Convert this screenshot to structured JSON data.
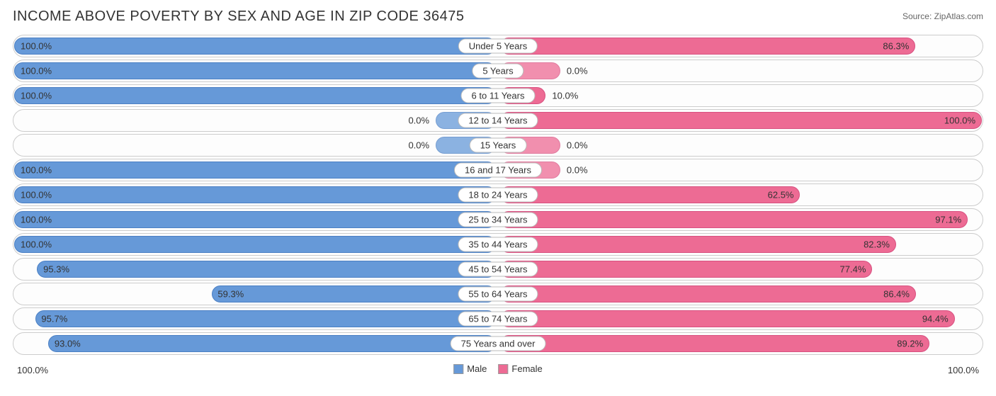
{
  "title": "INCOME ABOVE POVERTY BY SEX AND AGE IN ZIP CODE 36475",
  "source": "Source: ZipAtlas.com",
  "colors": {
    "male": "#6699d8",
    "male_border": "#4a7fc4",
    "female": "#ed6b94",
    "female_border": "#d85080",
    "track_border": "#cccccc",
    "text": "#333333"
  },
  "chart": {
    "type": "diverging-bar",
    "axis_max": 100.0,
    "axis_left_label": "100.0%",
    "axis_right_label": "100.0%",
    "legend": [
      {
        "label": "Male",
        "color": "#6699d8"
      },
      {
        "label": "Female",
        "color": "#ed6b94"
      }
    ],
    "rows": [
      {
        "category": "Under 5 Years",
        "male": 100.0,
        "male_label": "100.0%",
        "female": 86.3,
        "female_label": "86.3%",
        "male_stub": false,
        "female_stub": false
      },
      {
        "category": "5 Years",
        "male": 100.0,
        "male_label": "100.0%",
        "female": 0.0,
        "female_label": "0.0%",
        "male_stub": false,
        "female_stub": true
      },
      {
        "category": "6 to 11 Years",
        "male": 100.0,
        "male_label": "100.0%",
        "female": 10.0,
        "female_label": "10.0%",
        "male_stub": false,
        "female_stub": false
      },
      {
        "category": "12 to 14 Years",
        "male": 0.0,
        "male_label": "0.0%",
        "female": 100.0,
        "female_label": "100.0%",
        "male_stub": true,
        "female_stub": false
      },
      {
        "category": "15 Years",
        "male": 0.0,
        "male_label": "0.0%",
        "female": 0.0,
        "female_label": "0.0%",
        "male_stub": true,
        "female_stub": true
      },
      {
        "category": "16 and 17 Years",
        "male": 100.0,
        "male_label": "100.0%",
        "female": 0.0,
        "female_label": "0.0%",
        "male_stub": false,
        "female_stub": true
      },
      {
        "category": "18 to 24 Years",
        "male": 100.0,
        "male_label": "100.0%",
        "female": 62.5,
        "female_label": "62.5%",
        "male_stub": false,
        "female_stub": false
      },
      {
        "category": "25 to 34 Years",
        "male": 100.0,
        "male_label": "100.0%",
        "female": 97.1,
        "female_label": "97.1%",
        "male_stub": false,
        "female_stub": false
      },
      {
        "category": "35 to 44 Years",
        "male": 100.0,
        "male_label": "100.0%",
        "female": 82.3,
        "female_label": "82.3%",
        "male_stub": false,
        "female_stub": false
      },
      {
        "category": "45 to 54 Years",
        "male": 95.3,
        "male_label": "95.3%",
        "female": 77.4,
        "female_label": "77.4%",
        "male_stub": false,
        "female_stub": false
      },
      {
        "category": "55 to 64 Years",
        "male": 59.3,
        "male_label": "59.3%",
        "female": 86.4,
        "female_label": "86.4%",
        "male_stub": false,
        "female_stub": false
      },
      {
        "category": "65 to 74 Years",
        "male": 95.7,
        "male_label": "95.7%",
        "female": 94.4,
        "female_label": "94.4%",
        "male_stub": false,
        "female_stub": false
      },
      {
        "category": "75 Years and over",
        "male": 93.0,
        "male_label": "93.0%",
        "female": 89.2,
        "female_label": "89.2%",
        "male_stub": false,
        "female_stub": false
      }
    ]
  }
}
